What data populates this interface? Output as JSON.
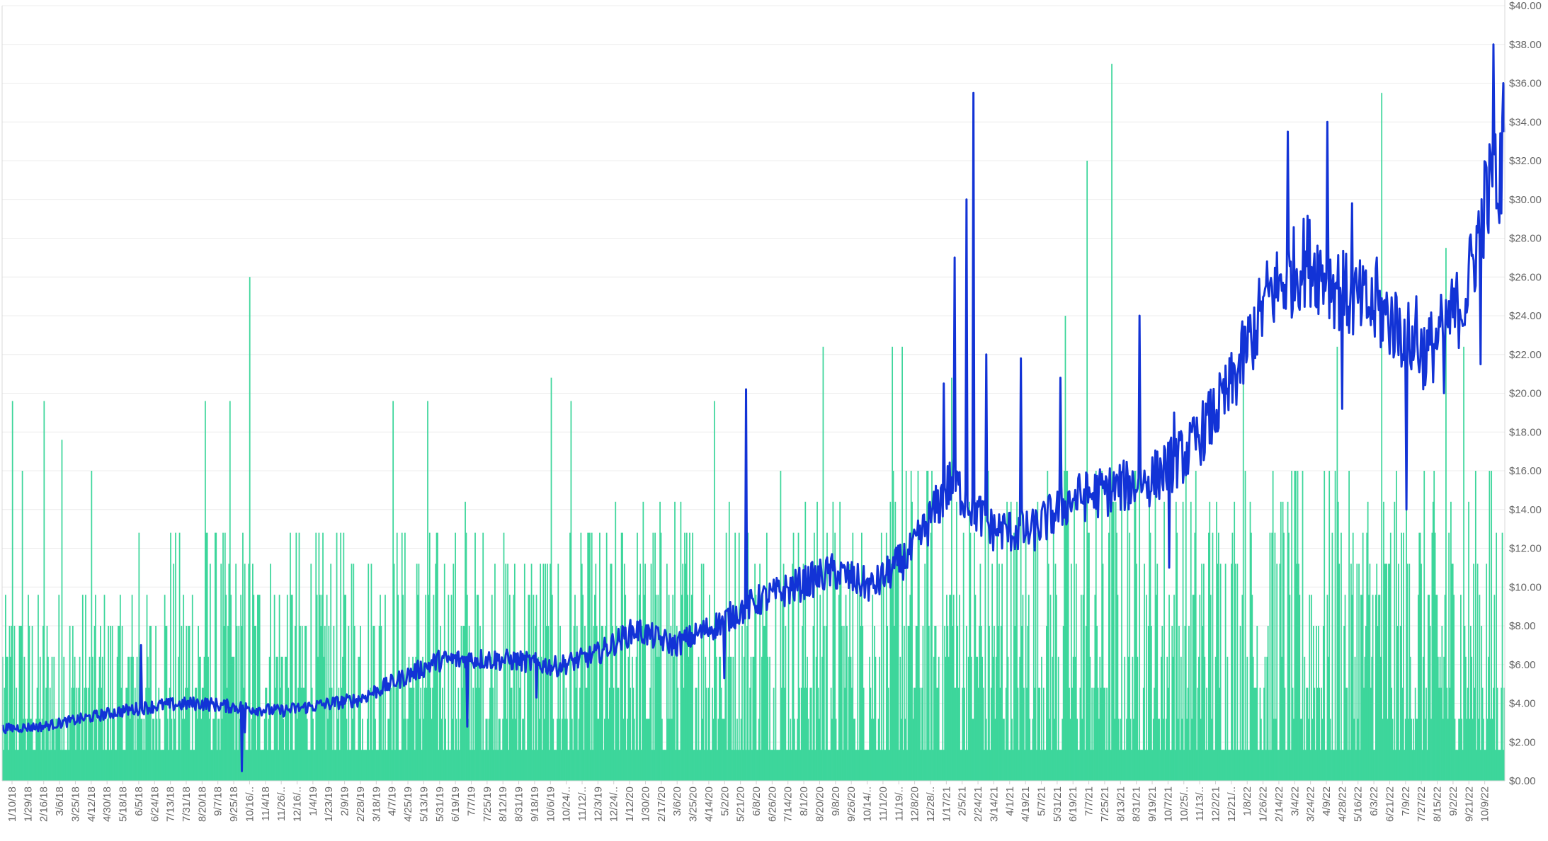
{
  "chart_data": {
    "type": "bar+line",
    "title": "",
    "xlabel": "",
    "ylabel": "",
    "ylim": [
      0,
      40
    ],
    "y_ticks": [
      "$0.00",
      "$2.00",
      "$4.00",
      "$6.00",
      "$8.00",
      "$10.00",
      "$12.00",
      "$14.00",
      "$16.00",
      "$18.00",
      "$20.00",
      "$22.00",
      "$24.00",
      "$26.00",
      "$28.00",
      "$30.00",
      "$32.00",
      "$34.00",
      "$36.00",
      "$38.00",
      "$40.00"
    ],
    "y_axis_position": "right",
    "grid": true,
    "legend": "none",
    "x_tick_labels": [
      "1/10/18",
      "1/29/18",
      "2/16/18",
      "3/6/18",
      "3/25/18",
      "4/12/18",
      "4/30/18",
      "5/18/18",
      "6/5/18",
      "6/24/18",
      "7/13/18",
      "7/31/18",
      "8/20/18",
      "9/7/18",
      "9/25/18",
      "10/16/..",
      "11/4/18",
      "11/26/..",
      "12/16/..",
      "1/4/19",
      "1/23/19",
      "2/9/19",
      "2/28/19",
      "3/18/19",
      "4/7/19",
      "4/25/19",
      "5/13/19",
      "5/31/19",
      "6/19/19",
      "7/7/19",
      "7/25/19",
      "8/12/19",
      "8/31/19",
      "9/18/19",
      "10/6/19",
      "10/24/..",
      "11/12/..",
      "12/3/19",
      "12/24/..",
      "1/12/20",
      "1/30/20",
      "2/17/20",
      "3/6/20",
      "3/25/20",
      "4/14/20",
      "5/2/20",
      "5/21/20",
      "6/8/20",
      "6/26/20",
      "7/14/20",
      "8/1/20",
      "8/20/20",
      "9/8/20",
      "9/26/20",
      "10/14/..",
      "11/1/20",
      "11/19/..",
      "12/8/20",
      "12/28/..",
      "1/17/21",
      "2/5/21",
      "2/24/21",
      "3/14/21",
      "4/1/21",
      "4/19/21",
      "5/7/21",
      "5/31/21",
      "6/19/21",
      "7/7/21",
      "7/25/21",
      "8/13/21",
      "8/31/21",
      "9/19/21",
      "10/7/21",
      "10/25/..",
      "11/13/..",
      "12/2/21",
      "12/21/..",
      "1/8/22",
      "1/26/22",
      "2/14/22",
      "3/4/22",
      "3/24/22",
      "4/9/22",
      "4/28/22",
      "5/16/22",
      "6/3/22",
      "6/21/22",
      "7/9/22",
      "7/27/22",
      "8/15/22",
      "9/2/22",
      "9/21/22",
      "10/9/22"
    ],
    "n_points": 1520,
    "series": [
      {
        "kind": "bar",
        "color": "#3dd69b",
        "values_description": "dense daily bars, base level mostly between 1.5 and 8, spikes up to the maxima listed",
        "spikes": [
          [
            10,
            19.6
          ],
          [
            20,
            16
          ],
          [
            42,
            19.6
          ],
          [
            60,
            17.6
          ],
          [
            90,
            16
          ],
          [
            138,
            12.8
          ],
          [
            205,
            19.6
          ],
          [
            230,
            19.6
          ],
          [
            250,
            26
          ],
          [
            395,
            19.6
          ],
          [
            430,
            19.6
          ],
          [
            468,
            14.4
          ],
          [
            555,
            20.8
          ],
          [
            575,
            19.6
          ],
          [
            720,
            19.6
          ],
          [
            787,
            16
          ],
          [
            830,
            22.4
          ],
          [
            900,
            22.4
          ],
          [
            910,
            22.4
          ],
          [
            960,
            20.8
          ],
          [
            1075,
            24
          ],
          [
            1097,
            32
          ],
          [
            1122,
            37
          ],
          [
            1150,
            24
          ],
          [
            1255,
            20.8
          ],
          [
            1350,
            22.4
          ],
          [
            1395,
            35.5
          ],
          [
            1460,
            27.5
          ],
          [
            1478,
            22.4
          ]
        ],
        "ranges": [
          [
            0,
            160,
            [
              1.5,
              11
            ]
          ],
          [
            160,
            380,
            [
              1.5,
              12.8
            ]
          ],
          [
            380,
            620,
            [
              1.5,
              12.8
            ]
          ],
          [
            620,
            900,
            [
              1.5,
              14.4
            ]
          ],
          [
            900,
            1240,
            [
              1.5,
              16
            ]
          ],
          [
            1240,
            1520,
            [
              1.5,
              16
            ]
          ]
        ]
      },
      {
        "kind": "line",
        "color": "#1233d6",
        "points": [
          [
            0,
            2.7
          ],
          [
            40,
            2.8
          ],
          [
            80,
            3.2
          ],
          [
            120,
            3.6
          ],
          [
            160,
            3.9
          ],
          [
            200,
            4.0
          ],
          [
            240,
            3.8
          ],
          [
            280,
            3.6
          ],
          [
            320,
            3.9
          ],
          [
            360,
            4.2
          ],
          [
            400,
            5.2
          ],
          [
            440,
            6.2
          ],
          [
            480,
            6.3
          ],
          [
            520,
            6.2
          ],
          [
            560,
            5.9
          ],
          [
            600,
            6.5
          ],
          [
            640,
            7.8
          ],
          [
            680,
            7.0
          ],
          [
            720,
            8.0
          ],
          [
            760,
            9.2
          ],
          [
            800,
            10.0
          ],
          [
            840,
            10.8
          ],
          [
            880,
            10.0
          ],
          [
            920,
            11.8
          ],
          [
            960,
            15.5
          ],
          [
            1000,
            13.0
          ],
          [
            1040,
            12.8
          ],
          [
            1080,
            14.5
          ],
          [
            1120,
            15.0
          ],
          [
            1160,
            15.5
          ],
          [
            1200,
            17.0
          ],
          [
            1240,
            20.0
          ],
          [
            1280,
            25.0
          ],
          [
            1320,
            27.0
          ],
          [
            1360,
            25.0
          ],
          [
            1400,
            24.0
          ],
          [
            1440,
            22.0
          ],
          [
            1480,
            25.0
          ],
          [
            1500,
            30.0
          ],
          [
            1520,
            32.0
          ]
        ],
        "spikes": [
          [
            140,
            7.0
          ],
          [
            242,
            0.5
          ],
          [
            245,
            2.5
          ],
          [
            470,
            2.8
          ],
          [
            540,
            4.3
          ],
          [
            730,
            5.3
          ],
          [
            752,
            20.2
          ],
          [
            952,
            20.5
          ],
          [
            963,
            27.0
          ],
          [
            975,
            30.0
          ],
          [
            982,
            35.5
          ],
          [
            995,
            22.0
          ],
          [
            1030,
            21.8
          ],
          [
            1070,
            20.8
          ],
          [
            1150,
            24.0
          ],
          [
            1185,
            19.0
          ],
          [
            1180,
            11.0
          ],
          [
            1264,
            22.0
          ],
          [
            1300,
            33.5
          ],
          [
            1340,
            34.0
          ],
          [
            1355,
            19.2
          ],
          [
            1365,
            29.8
          ],
          [
            1390,
            27.0
          ],
          [
            1420,
            14.0
          ],
          [
            1430,
            25.0
          ],
          [
            1458,
            20.0
          ],
          [
            1495,
            21.5
          ],
          [
            1508,
            38.0
          ],
          [
            1513,
            29.5
          ],
          [
            1518,
            36.0
          ]
        ]
      }
    ]
  }
}
